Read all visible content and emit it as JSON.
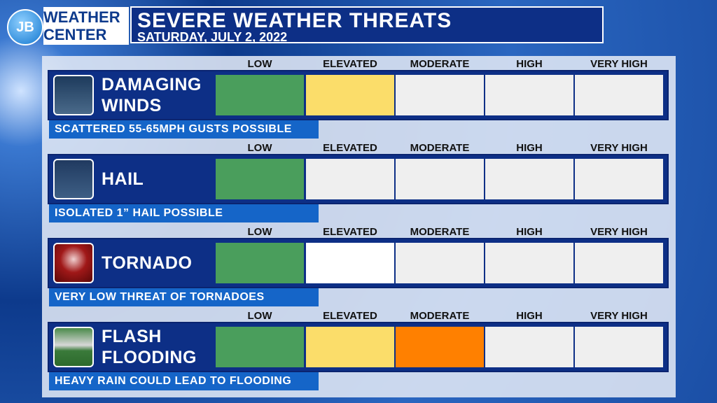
{
  "header": {
    "logo_initials": "JB",
    "logo_line1": "WEATHER",
    "logo_line2": "CENTER",
    "title": "SEVERE WEATHER THREATS",
    "subtitle": "SATURDAY, JULY 2, 2022"
  },
  "levels": [
    "LOW",
    "ELEVATED",
    "MODERATE",
    "HIGH",
    "VERY HIGH"
  ],
  "threats": [
    {
      "name": "DAMAGING WINDS",
      "description": "SCATTERED 55-65MPH GUSTS POSSIBLE",
      "cell_colors": [
        "#4a9e5c",
        "#fbdd6a",
        "#efefef",
        "#efefef",
        "#efefef"
      ]
    },
    {
      "name": "HAIL",
      "description": "ISOLATED 1” HAIL POSSIBLE",
      "cell_colors": [
        "#4a9e5c",
        "#efefef",
        "#efefef",
        "#efefef",
        "#efefef"
      ]
    },
    {
      "name": "TORNADO",
      "description": "VERY LOW THREAT OF TORNADOES",
      "cell_colors": [
        "#4a9e5c",
        "#ffffff",
        "#efefef",
        "#efefef",
        "#efefef"
      ]
    },
    {
      "name": "FLASH FLOODING",
      "description": "HEAVY RAIN COULD LEAD TO FLOODING",
      "cell_colors": [
        "#4a9e5c",
        "#fbdd6a",
        "#ff8000",
        "#efefef",
        "#efefef"
      ]
    }
  ]
}
